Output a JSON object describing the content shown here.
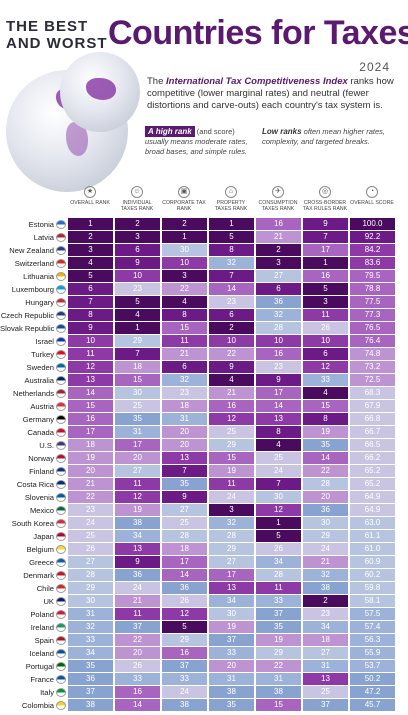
{
  "header": {
    "pre_title_line1": "THE BEST",
    "pre_title_line2": "AND WORST",
    "title": "Countries for Taxes",
    "year": "2024",
    "desc_prefix": "The ",
    "desc_bold": "International Tax Competitiveness Index",
    "desc_rest": " ranks how competitive (lower marginal rates) and neutral (fewer distortions and carve-outs) each country's tax system is.",
    "high_tag": "A high rank",
    "high_paren": " (and score)",
    "high_text": "usually means moderate rates, broad bases, and simple rules.",
    "low_tag": "Low ranks",
    "low_text": " often mean higher rates, complexity, and targeted breaks."
  },
  "colors": {
    "title": "#5b1970",
    "scale": [
      "#4a0a5e",
      "#6b1a86",
      "#8d3aa6",
      "#a865bf",
      "#bd93d1",
      "#c8c4e2",
      "#b7c4e0",
      "#9db2d8",
      "#88a3cf"
    ]
  },
  "chart_data": {
    "type": "table",
    "columns": [
      "OVERALL RANK",
      "INDIVIDUAL TAXES RANK",
      "CORPORATE TAX RANK",
      "PROPERTY TAXES RANK",
      "CONSUMPTION TAXES RANK",
      "CROSS-BORDER TAX RULES RANK",
      "OVERALL SCORE"
    ],
    "column_icons": [
      "trophy-icon",
      "person-icon",
      "building-icon",
      "house-icon",
      "cart-icon",
      "globe-icon",
      "gauge-icon"
    ],
    "rows": [
      {
        "country": "Estonia",
        "values": [
          "1",
          "2",
          "2",
          "1",
          "16",
          "9",
          "100.0"
        ]
      },
      {
        "country": "Latvia",
        "values": [
          "2",
          "3",
          "1",
          "5",
          "21",
          "7",
          "92.2"
        ]
      },
      {
        "country": "New Zealand",
        "values": [
          "3",
          "6",
          "30",
          "8",
          "2",
          "17",
          "84.2"
        ]
      },
      {
        "country": "Switzerland",
        "values": [
          "4",
          "9",
          "10",
          "32",
          "3",
          "1",
          "83.6"
        ]
      },
      {
        "country": "Lithuania",
        "values": [
          "5",
          "10",
          "3",
          "7",
          "27",
          "16",
          "79.5"
        ]
      },
      {
        "country": "Luxembourg",
        "values": [
          "6",
          "23",
          "22",
          "14",
          "6",
          "5",
          "78.8"
        ]
      },
      {
        "country": "Hungary",
        "values": [
          "7",
          "5",
          "4",
          "23",
          "36",
          "3",
          "77.5"
        ]
      },
      {
        "country": "Czech Republic",
        "values": [
          "8",
          "4",
          "8",
          "6",
          "32",
          "11",
          "77.3"
        ]
      },
      {
        "country": "Slovak Republic",
        "values": [
          "9",
          "1",
          "15",
          "2",
          "28",
          "26",
          "76.5"
        ]
      },
      {
        "country": "Israel",
        "values": [
          "10",
          "29",
          "11",
          "10",
          "10",
          "10",
          "76.4"
        ]
      },
      {
        "country": "Turkey",
        "values": [
          "11",
          "7",
          "21",
          "22",
          "16",
          "6",
          "74.8"
        ]
      },
      {
        "country": "Sweden",
        "values": [
          "12",
          "18",
          "6",
          "9",
          "23",
          "12",
          "73.2"
        ]
      },
      {
        "country": "Australia",
        "values": [
          "13",
          "15",
          "32",
          "4",
          "9",
          "33",
          "72.5"
        ]
      },
      {
        "country": "Netherlands",
        "values": [
          "14",
          "30",
          "23",
          "21",
          "17",
          "4",
          "68.3"
        ]
      },
      {
        "country": "Austria",
        "values": [
          "15",
          "25",
          "18",
          "16",
          "14",
          "15",
          "67.9"
        ]
      },
      {
        "country": "Germany",
        "values": [
          "16",
          "35",
          "31",
          "12",
          "13",
          "8",
          "66.8"
        ]
      },
      {
        "country": "Canada",
        "values": [
          "17",
          "31",
          "20",
          "25",
          "8",
          "19",
          "66.7"
        ]
      },
      {
        "country": "U.S.",
        "values": [
          "18",
          "17",
          "20",
          "29",
          "4",
          "35",
          "66.5"
        ]
      },
      {
        "country": "Norway",
        "values": [
          "19",
          "20",
          "13",
          "15",
          "25",
          "14",
          "66.2"
        ]
      },
      {
        "country": "Finland",
        "values": [
          "20",
          "27",
          "7",
          "19",
          "24",
          "22",
          "65.2"
        ]
      },
      {
        "country": "Costa Rica",
        "values": [
          "21",
          "11",
          "35",
          "11",
          "7",
          "28",
          "65.2"
        ]
      },
      {
        "country": "Slovenia",
        "values": [
          "22",
          "12",
          "9",
          "24",
          "30",
          "20",
          "64.9"
        ]
      },
      {
        "country": "Mexico",
        "values": [
          "23",
          "19",
          "27",
          "3",
          "12",
          "36",
          "64.9"
        ]
      },
      {
        "country": "South Korea",
        "values": [
          "24",
          "38",
          "25",
          "32",
          "1",
          "30",
          "63.0"
        ]
      },
      {
        "country": "Japan",
        "values": [
          "25",
          "34",
          "28",
          "28",
          "5",
          "29",
          "61.1"
        ]
      },
      {
        "country": "Belgium",
        "values": [
          "26",
          "13",
          "18",
          "29",
          "26",
          "24",
          "61.0"
        ]
      },
      {
        "country": "Greece",
        "values": [
          "27",
          "9",
          "17",
          "27",
          "34",
          "21",
          "60.9"
        ]
      },
      {
        "country": "Denmark",
        "values": [
          "28",
          "36",
          "14",
          "17",
          "28",
          "32",
          "60.2"
        ]
      },
      {
        "country": "Chile",
        "values": [
          "29",
          "24",
          "36",
          "13",
          "11",
          "38",
          "59.8"
        ]
      },
      {
        "country": "UK",
        "values": [
          "30",
          "21",
          "26",
          "34",
          "33",
          "2",
          "58.1"
        ]
      },
      {
        "country": "Poland",
        "values": [
          "31",
          "11",
          "12",
          "30",
          "37",
          "23",
          "57.5"
        ]
      },
      {
        "country": "Ireland",
        "values": [
          "32",
          "37",
          "5",
          "19",
          "35",
          "34",
          "57.4"
        ]
      },
      {
        "country": "Spain",
        "values": [
          "33",
          "22",
          "29",
          "37",
          "19",
          "18",
          "56.3"
        ]
      },
      {
        "country": "Iceland",
        "values": [
          "34",
          "20",
          "16",
          "33",
          "29",
          "27",
          "55.9"
        ]
      },
      {
        "country": "Portugal",
        "values": [
          "35",
          "26",
          "37",
          "20",
          "22",
          "31",
          "53.7"
        ]
      },
      {
        "country": "France",
        "values": [
          "36",
          "33",
          "33",
          "31",
          "31",
          "13",
          "50.2"
        ]
      },
      {
        "country": "Italy",
        "values": [
          "37",
          "16",
          "24",
          "38",
          "38",
          "25",
          "47.2"
        ]
      },
      {
        "country": "Colombia",
        "values": [
          "38",
          "14",
          "38",
          "35",
          "15",
          "37",
          "45.7"
        ]
      }
    ]
  }
}
